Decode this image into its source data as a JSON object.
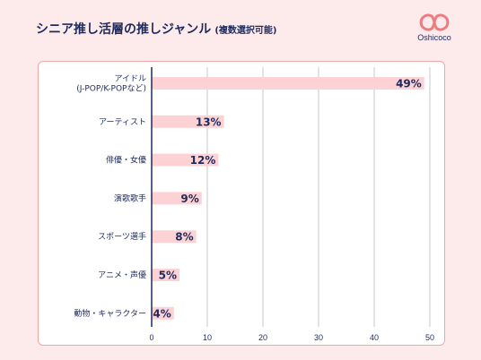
{
  "header": {
    "title": "シニア推し活層の推しジャンル",
    "subtitle": "(複数選択可能)"
  },
  "logo": {
    "name": "Oshicoco",
    "icon": "oshicoco-logo-icon",
    "color": "#ef7a80"
  },
  "colors": {
    "bar": "#fdd2d4",
    "text": "#1f2a5c",
    "grid": "#c8c8cc",
    "axis": "#1f2a5c",
    "card_border": "#f0a6ab",
    "background": "#fdeaea"
  },
  "chart_data": {
    "type": "bar",
    "orientation": "horizontal",
    "categories": [
      [
        "アイドル",
        "(J-POP/K-POPなど)"
      ],
      [
        "アーティスト"
      ],
      [
        "俳優・女優"
      ],
      [
        "演歌歌手"
      ],
      [
        "スポーツ選手"
      ],
      [
        "アニメ・声優"
      ],
      [
        "動物・キャラクター"
      ]
    ],
    "values": [
      49,
      13,
      12,
      9,
      8,
      5,
      4
    ],
    "value_labels": [
      "49%",
      "13%",
      "12%",
      "9%",
      "8%",
      "5%",
      "4%"
    ],
    "xlim": [
      0,
      50
    ],
    "xticks": [
      "0",
      "10",
      "20",
      "30",
      "40",
      "50"
    ],
    "grid": true
  }
}
